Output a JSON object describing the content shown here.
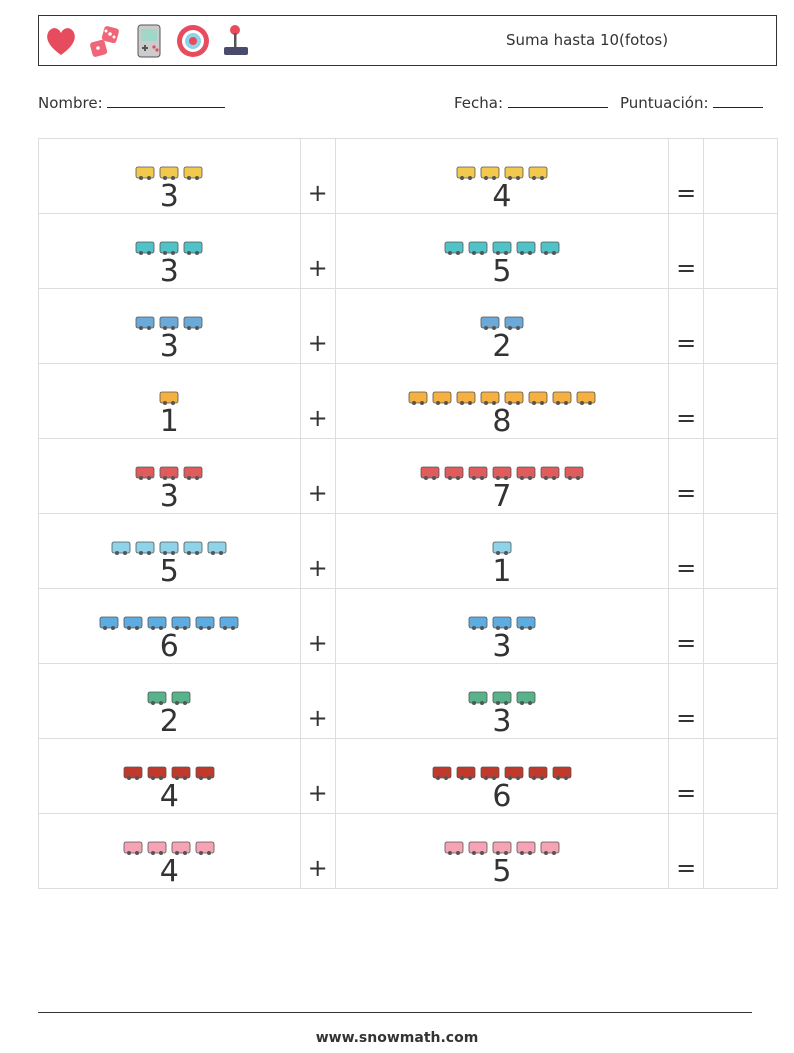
{
  "header": {
    "icons": [
      "heart-icon",
      "dice-icon",
      "game-console-icon",
      "poker-chip-icon",
      "joystick-icon"
    ],
    "title": "Suma hasta 10(fotos)"
  },
  "meta": {
    "name_label": "Nombre:",
    "date_label": "Fecha:",
    "score_label": "Puntuación:"
  },
  "problems": [
    {
      "a": "3",
      "b": "4",
      "plus": "+",
      "eq": "=",
      "picture": "trolleybus"
    },
    {
      "a": "3",
      "b": "5",
      "plus": "+",
      "eq": "=",
      "picture": "sailboat"
    },
    {
      "a": "3",
      "b": "2",
      "plus": "+",
      "eq": "=",
      "picture": "city-buildings"
    },
    {
      "a": "1",
      "b": "8",
      "plus": "+",
      "eq": "=",
      "picture": "cheese"
    },
    {
      "a": "3",
      "b": "7",
      "plus": "+",
      "eq": "=",
      "picture": "truck"
    },
    {
      "a": "5",
      "b": "1",
      "plus": "+",
      "eq": "=",
      "picture": "map-frame"
    },
    {
      "a": "6",
      "b": "3",
      "plus": "+",
      "eq": "=",
      "picture": "shop-building"
    },
    {
      "a": "2",
      "b": "3",
      "plus": "+",
      "eq": "=",
      "picture": "trees"
    },
    {
      "a": "4",
      "b": "6",
      "plus": "+",
      "eq": "=",
      "picture": "cherries"
    },
    {
      "a": "4",
      "b": "5",
      "plus": "+",
      "eq": "=",
      "picture": "heart-message"
    }
  ],
  "colors": {
    "trolleybus": "#f2c94c",
    "sailboat": "#4fc3c7",
    "city-buildings": "#6aa9d8",
    "cheese": "#f5b041",
    "truck": "#e05b5b",
    "map-frame": "#8fd3e8",
    "shop-building": "#5dade2",
    "trees": "#58b38a",
    "cherries": "#c0392b",
    "heart-message": "#f5a3b5"
  },
  "footer": "www.snowmath.com"
}
